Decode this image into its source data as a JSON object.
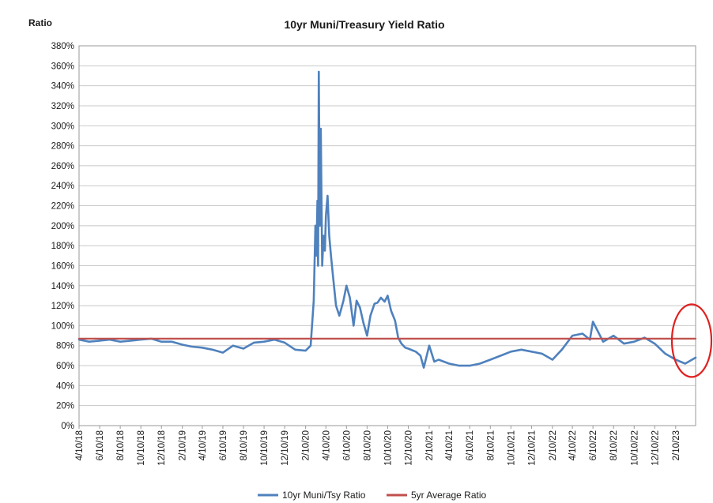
{
  "chart_data": {
    "type": "line",
    "title": "10yr Muni/Treasury Yield Ratio",
    "ylabel": "Ratio",
    "xlabel": "",
    "ylim": [
      0,
      380
    ],
    "y_ticks": [
      "0%",
      "20%",
      "40%",
      "60%",
      "80%",
      "100%",
      "120%",
      "140%",
      "160%",
      "180%",
      "200%",
      "220%",
      "240%",
      "260%",
      "280%",
      "300%",
      "320%",
      "340%",
      "360%",
      "380%"
    ],
    "x_ticks": [
      "4/10/18",
      "6/10/18",
      "8/10/18",
      "10/10/18",
      "12/10/18",
      "2/10/19",
      "4/10/19",
      "6/10/19",
      "8/10/19",
      "10/10/19",
      "12/10/19",
      "2/10/20",
      "4/10/20",
      "6/10/20",
      "8/10/20",
      "10/10/20",
      "12/10/20",
      "2/10/21",
      "4/10/21",
      "6/10/21",
      "8/10/21",
      "10/10/21",
      "12/10/21",
      "2/10/22",
      "4/10/22",
      "6/10/22",
      "8/10/22",
      "10/10/22",
      "12/10/22",
      "2/10/23"
    ],
    "x_range": [
      "2018-04-10",
      "2023-04-10"
    ],
    "grid": "horizontal",
    "legend_position": "bottom",
    "series": [
      {
        "name": "10yr Muni/Tsy Ratio",
        "color": "#4f81bd",
        "x": [
          "2018-04-10",
          "2018-05-10",
          "2018-06-10",
          "2018-07-10",
          "2018-08-10",
          "2018-09-10",
          "2018-10-10",
          "2018-11-10",
          "2018-12-10",
          "2019-01-10",
          "2019-02-10",
          "2019-03-10",
          "2019-04-10",
          "2019-05-10",
          "2019-06-10",
          "2019-07-10",
          "2019-08-10",
          "2019-09-10",
          "2019-10-10",
          "2019-11-10",
          "2019-12-10",
          "2020-01-10",
          "2020-02-10",
          "2020-02-25",
          "2020-03-05",
          "2020-03-10",
          "2020-03-13",
          "2020-03-16",
          "2020-03-18",
          "2020-03-20",
          "2020-03-23",
          "2020-03-26",
          "2020-03-30",
          "2020-04-03",
          "2020-04-07",
          "2020-04-10",
          "2020-04-15",
          "2020-04-20",
          "2020-04-25",
          "2020-05-01",
          "2020-05-10",
          "2020-05-20",
          "2020-06-01",
          "2020-06-10",
          "2020-06-20",
          "2020-07-01",
          "2020-07-10",
          "2020-07-20",
          "2020-07-30",
          "2020-08-10",
          "2020-08-20",
          "2020-09-01",
          "2020-09-10",
          "2020-09-20",
          "2020-10-01",
          "2020-10-10",
          "2020-10-20",
          "2020-11-01",
          "2020-11-10",
          "2020-11-20",
          "2020-12-01",
          "2020-12-10",
          "2021-01-01",
          "2021-01-15",
          "2021-01-25",
          "2021-02-10",
          "2021-02-25",
          "2021-03-10",
          "2021-04-10",
          "2021-05-10",
          "2021-06-10",
          "2021-07-10",
          "2021-08-10",
          "2021-09-10",
          "2021-10-10",
          "2021-11-10",
          "2021-12-10",
          "2022-01-10",
          "2022-02-10",
          "2022-03-10",
          "2022-04-10",
          "2022-05-10",
          "2022-06-01",
          "2022-06-10",
          "2022-07-10",
          "2022-08-10",
          "2022-09-10",
          "2022-10-10",
          "2022-11-10",
          "2022-12-10",
          "2023-01-10",
          "2023-02-10",
          "2023-03-10",
          "2023-04-10"
        ],
        "values": [
          86,
          84,
          85,
          86,
          84,
          85,
          86,
          87,
          84,
          84,
          81,
          79,
          78,
          76,
          73,
          80,
          77,
          83,
          84,
          86,
          83,
          76,
          75,
          80,
          125,
          200,
          170,
          225,
          160,
          354,
          200,
          297,
          160,
          190,
          175,
          210,
          230,
          190,
          170,
          150,
          120,
          110,
          125,
          140,
          128,
          100,
          125,
          118,
          103,
          90,
          110,
          122,
          123,
          128,
          124,
          130,
          115,
          105,
          88,
          82,
          78,
          77,
          74,
          70,
          58,
          80,
          64,
          66,
          62,
          60,
          60,
          62,
          66,
          70,
          74,
          76,
          74,
          72,
          66,
          76,
          90,
          92,
          86,
          104,
          84,
          90,
          82,
          84,
          88,
          82,
          72,
          66,
          62,
          68
        ]
      },
      {
        "name": "5yr Average Ratio",
        "color": "#c0504d",
        "x": [
          "2018-04-10",
          "2023-04-10"
        ],
        "values": [
          87,
          87
        ]
      }
    ],
    "annotations": [
      {
        "shape": "ellipse",
        "color": "#e02020",
        "center": [
          "2023-04-10",
          85
        ]
      }
    ]
  }
}
